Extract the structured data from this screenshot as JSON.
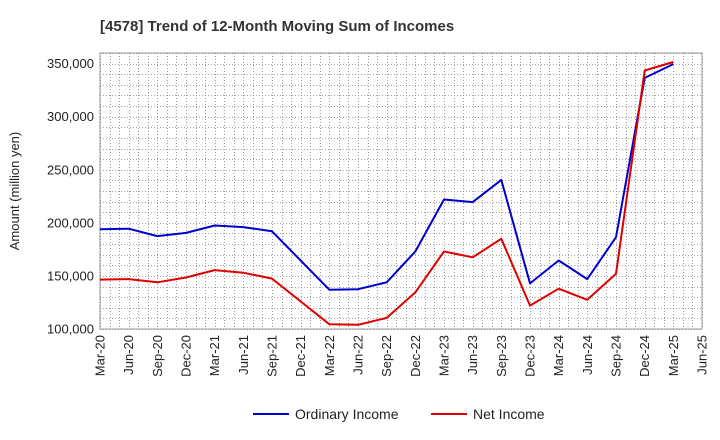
{
  "chart_data": {
    "type": "line",
    "title": "[4578]  Trend of 12-Month Moving Sum of Incomes",
    "xlabel": "",
    "ylabel": "Amount (million yen)",
    "ylim": [
      100000,
      360000
    ],
    "yticks": [
      100000,
      150000,
      200000,
      250000,
      300000,
      350000
    ],
    "ytick_labels": [
      "100,000",
      "150,000",
      "200,000",
      "250,000",
      "300,000",
      "350,000"
    ],
    "categories": [
      "Mar-20",
      "Jun-20",
      "Sep-20",
      "Dec-20",
      "Mar-21",
      "Jun-21",
      "Sep-21",
      "Dec-21",
      "Mar-22",
      "Jun-22",
      "Sep-22",
      "Dec-22",
      "Mar-23",
      "Jun-23",
      "Sep-23",
      "Dec-23",
      "Mar-24",
      "Jun-24",
      "Sep-24",
      "Dec-24",
      "Mar-25",
      "Jun-25"
    ],
    "grid": true,
    "legend_position": "bottom",
    "series": [
      {
        "name": "Ordinary Income",
        "color": "#0000cc",
        "values": [
          194000,
          194500,
          187500,
          190500,
          197500,
          196000,
          192000,
          null,
          137000,
          137500,
          144000,
          173000,
          222000,
          219500,
          240500,
          143000,
          164500,
          147000,
          186500,
          336500,
          349500,
          null
        ]
      },
      {
        "name": "Net Income",
        "color": "#dd0000",
        "values": [
          146500,
          147000,
          144000,
          148500,
          155500,
          153000,
          147500,
          null,
          104500,
          104000,
          110500,
          134500,
          173000,
          167500,
          185000,
          122000,
          138000,
          127500,
          152000,
          343500,
          351500,
          null
        ]
      }
    ]
  }
}
